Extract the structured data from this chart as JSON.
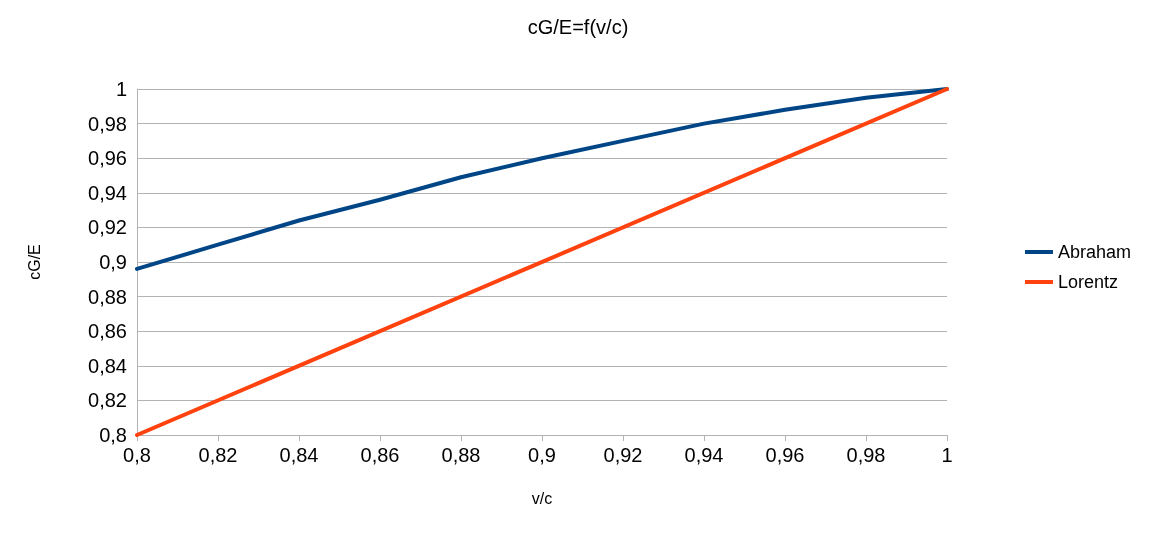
{
  "chart_data": {
    "type": "line",
    "title": "cG/E=f(v/c)",
    "xlabel": "v/c",
    "ylabel": "cG/E",
    "series": [
      {
        "name": "Abraham",
        "color": "#004586",
        "x": [
          0.8,
          0.82,
          0.84,
          0.86,
          0.88,
          0.9,
          0.92,
          0.94,
          0.96,
          0.98,
          1
        ],
        "values": [
          0.896,
          0.91,
          0.924,
          0.936,
          0.949,
          0.96,
          0.97,
          0.98,
          0.988,
          0.995,
          1
        ]
      },
      {
        "name": "Lorentz",
        "color": "#ff420e",
        "x": [
          0.8,
          1
        ],
        "values": [
          0.8,
          1
        ]
      }
    ],
    "xlim": [
      0.8,
      1
    ],
    "xticks": [
      {
        "value": 0.8,
        "label": "0,8"
      },
      {
        "value": 0.82,
        "label": "0,82"
      },
      {
        "value": 0.84,
        "label": "0,84"
      },
      {
        "value": 0.86,
        "label": "0,86"
      },
      {
        "value": 0.88,
        "label": "0,88"
      },
      {
        "value": 0.9,
        "label": "0,9"
      },
      {
        "value": 0.92,
        "label": "0,92"
      },
      {
        "value": 0.94,
        "label": "0,94"
      },
      {
        "value": 0.96,
        "label": "0,96"
      },
      {
        "value": 0.98,
        "label": "0,98"
      },
      {
        "value": 1,
        "label": "1"
      }
    ],
    "ylim": [
      0.8,
      1
    ],
    "yticks": [
      {
        "value": 0.8,
        "label": "0,8"
      },
      {
        "value": 0.82,
        "label": "0,82"
      },
      {
        "value": 0.84,
        "label": "0,84"
      },
      {
        "value": 0.86,
        "label": "0,86"
      },
      {
        "value": 0.88,
        "label": "0,88"
      },
      {
        "value": 0.9,
        "label": "0,9"
      },
      {
        "value": 0.92,
        "label": "0,92"
      },
      {
        "value": 0.94,
        "label": "0,94"
      },
      {
        "value": 0.96,
        "label": "0,96"
      },
      {
        "value": 0.98,
        "label": "0,98"
      },
      {
        "value": 1,
        "label": "1"
      }
    ],
    "grid": "y",
    "legend": "right",
    "marker": "none",
    "line_style": "solid"
  }
}
